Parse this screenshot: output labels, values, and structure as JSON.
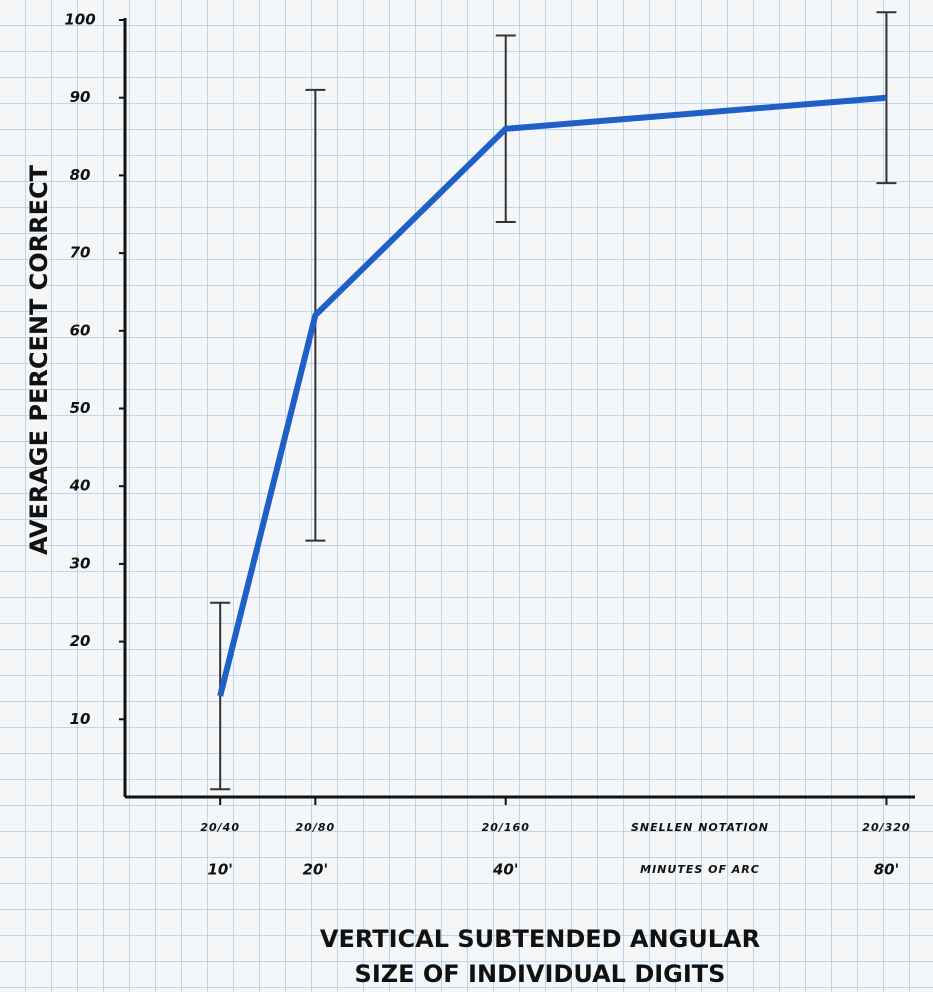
{
  "chart_data": {
    "type": "line",
    "ylabel": "AVERAGE PERCENT CORRECT",
    "xlabel": [
      "VERTICAL SUBTENDED ANGULAR",
      "SIZE OF INDIVIDUAL DIGITS"
    ],
    "x": [
      10,
      20,
      40,
      80
    ],
    "series": [
      {
        "color": "#1f5fc8",
        "values": [
          13,
          62,
          86,
          90
        ],
        "errors": [
          12,
          29,
          12,
          11
        ]
      }
    ],
    "xlim": [
      0,
      83
    ],
    "ylim": [
      0,
      100
    ],
    "xticks": [
      {
        "value": 10,
        "label": "10'"
      },
      {
        "value": 20,
        "label": "20'"
      },
      {
        "value": 40,
        "label": "40'"
      },
      {
        "value": 80,
        "label": "80'"
      }
    ],
    "snellen_labels": [
      "20/40",
      "20/80",
      "20/160",
      "20/320"
    ],
    "yticks": [
      10,
      20,
      30,
      40,
      50,
      60,
      70,
      80,
      90,
      100
    ],
    "annotations": [
      "SNELLEN NOTATION",
      "MINUTES OF ARC"
    ]
  }
}
